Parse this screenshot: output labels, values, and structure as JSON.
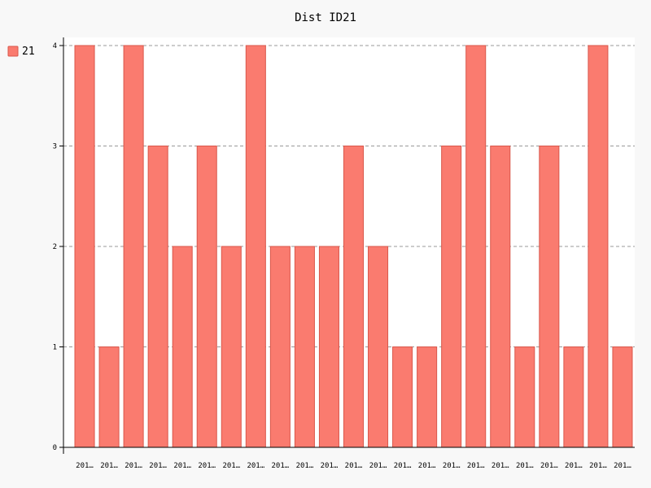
{
  "chart_data": {
    "type": "bar",
    "title": "Dist ID21",
    "xlabel": "",
    "ylabel": "",
    "ylim": [
      0,
      4
    ],
    "yticks": [
      "0",
      "1",
      "2",
      "3",
      "4"
    ],
    "grid": "horizontal dashed",
    "legend_position": "top-left",
    "categories": [
      "201…",
      "201…",
      "201…",
      "201…",
      "201…",
      "201…",
      "201…",
      "201…",
      "201…",
      "201…",
      "201…",
      "201…",
      "201…",
      "201…",
      "201…",
      "201…",
      "201…",
      "201…",
      "201…",
      "201…",
      "201…",
      "201…",
      "201…"
    ],
    "series": [
      {
        "name": "21",
        "color": "#fa7b6f",
        "stroke": "#d9574b",
        "values": [
          4,
          1,
          4,
          3,
          2,
          3,
          2,
          4,
          2,
          2,
          2,
          3,
          2,
          1,
          1,
          3,
          4,
          3,
          1,
          3,
          1,
          4,
          1
        ]
      }
    ]
  }
}
